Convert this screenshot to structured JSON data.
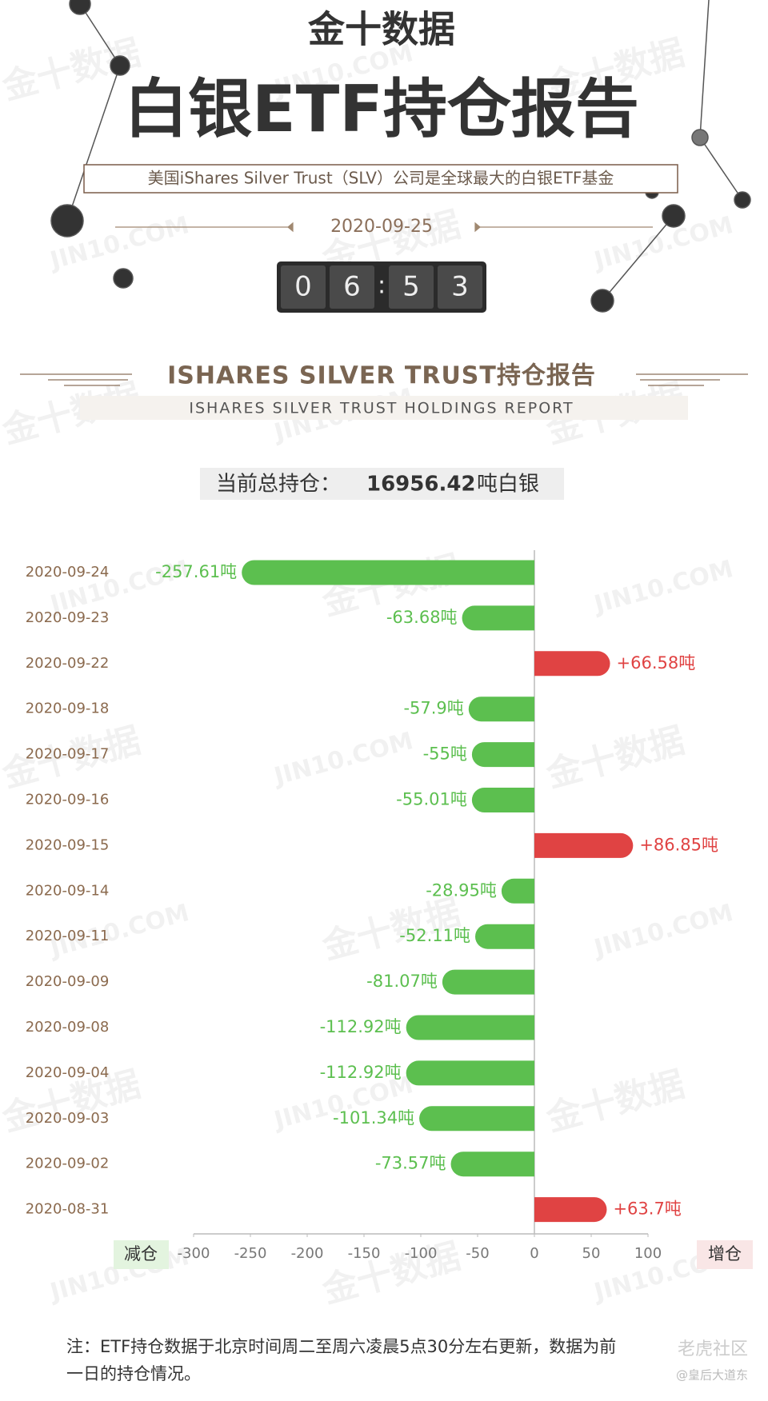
{
  "header": {
    "brand": "金十数据",
    "title": "白银ETF持仓报告",
    "subtitle": "美国iShares Silver Trust（SLV）公司是全球最大的白银ETF基金",
    "date": "2020-09-25",
    "clock": [
      "0",
      "6",
      "5",
      "3"
    ]
  },
  "section": {
    "title": "ISHARES SILVER TRUST持仓报告",
    "subtitle": "ISHARES SILVER TRUST HOLDINGS REPORT"
  },
  "total": {
    "label": "当前总持仓：",
    "value": "16956.42",
    "unit": "吨白银"
  },
  "chart_data": {
    "type": "bar",
    "orientation": "horizontal",
    "categories": [
      "2020-09-24",
      "2020-09-23",
      "2020-09-22",
      "2020-09-18",
      "2020-09-17",
      "2020-09-16",
      "2020-09-15",
      "2020-09-14",
      "2020-09-11",
      "2020-09-09",
      "2020-09-08",
      "2020-09-04",
      "2020-09-03",
      "2020-09-02",
      "2020-08-31"
    ],
    "values": [
      -257.61,
      -63.68,
      66.58,
      -57.9,
      -55,
      -55.01,
      86.85,
      -28.95,
      -52.11,
      -81.07,
      -112.92,
      -112.92,
      -101.34,
      -73.57,
      63.7
    ],
    "value_labels": [
      "-257.61吨",
      "-63.68吨",
      "+66.58吨",
      "-57.9吨",
      "-55吨",
      "-55.01吨",
      "+86.85吨",
      "-28.95吨",
      "-52.11吨",
      "-81.07吨",
      "-112.92吨",
      "-112.92吨",
      "-101.34吨",
      "-73.57吨",
      "+63.7吨"
    ],
    "negative_color": "#5cbf4f",
    "positive_color": "#e04343",
    "xlim": [
      -300,
      100
    ],
    "xticks": [
      -300,
      -250,
      -200,
      -150,
      -100,
      -50,
      0,
      50,
      100
    ],
    "decrease_label": "减仓",
    "increase_label": "增仓"
  },
  "note": [
    "注：ETF持仓数据于北京时间周二至周六凌晨5点30分左右更新，数据为前",
    "一日的持仓情况。"
  ],
  "watermarks": [
    "金十数据",
    "JIN10.COM"
  ],
  "footer": {
    "site": "老虎社区",
    "author": "@皇后大道东"
  }
}
